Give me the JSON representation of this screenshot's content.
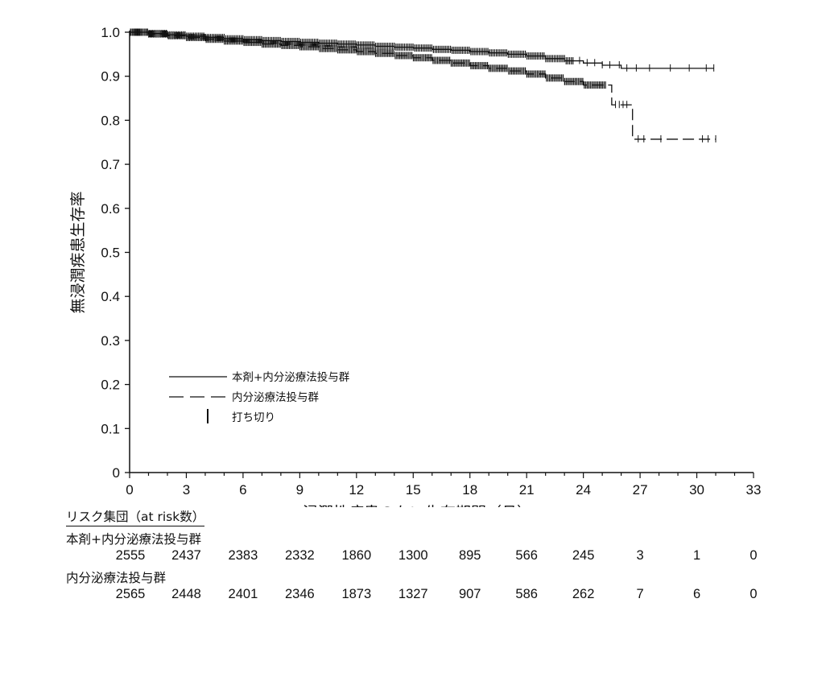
{
  "chart_data": {
    "type": "line",
    "subtype": "kaplan-meier",
    "title": "",
    "xlabel": "浸潤性疾患のない生存期間（月）",
    "ylabel": "無浸潤疾患生存率",
    "xlim": [
      0,
      33
    ],
    "ylim": [
      0,
      1.0
    ],
    "x_ticks": [
      "0",
      "3",
      "6",
      "9",
      "12",
      "15",
      "18",
      "21",
      "24",
      "27",
      "30",
      "33"
    ],
    "y_ticks": [
      "0",
      "0.1",
      "0.2",
      "0.3",
      "0.4",
      "0.5",
      "0.6",
      "0.7",
      "0.8",
      "0.9",
      "1.0"
    ],
    "grid": false,
    "legend_position": "bottom-left (inside plot)",
    "legend": {
      "censor_label": "打ち切り"
    },
    "series": [
      {
        "name": "本剤+内分泌療法投与群",
        "line_style": "solid",
        "points": [
          [
            0,
            1.0
          ],
          [
            1,
            0.997
          ],
          [
            2,
            0.994
          ],
          [
            3,
            0.991
          ],
          [
            4,
            0.988
          ],
          [
            5,
            0.985
          ],
          [
            6,
            0.983
          ],
          [
            7,
            0.981
          ],
          [
            8,
            0.979
          ],
          [
            9,
            0.977
          ],
          [
            10,
            0.975
          ],
          [
            11,
            0.973
          ],
          [
            12,
            0.971
          ],
          [
            13,
            0.968
          ],
          [
            14,
            0.966
          ],
          [
            15,
            0.964
          ],
          [
            16,
            0.961
          ],
          [
            17,
            0.959
          ],
          [
            18,
            0.956
          ],
          [
            19,
            0.953
          ],
          [
            20,
            0.95
          ],
          [
            21,
            0.946
          ],
          [
            22,
            0.94
          ],
          [
            23,
            0.935
          ],
          [
            24,
            0.93
          ],
          [
            25,
            0.925
          ],
          [
            26,
            0.918
          ],
          [
            27,
            0.918
          ],
          [
            28,
            0.918
          ],
          [
            29,
            0.918
          ],
          [
            30,
            0.918
          ],
          [
            30.9,
            0.918
          ]
        ]
      },
      {
        "name": "内分泌療法投与群",
        "line_style": "dashed",
        "points": [
          [
            0,
            1.0
          ],
          [
            1,
            0.996
          ],
          [
            2,
            0.992
          ],
          [
            3,
            0.988
          ],
          [
            4,
            0.984
          ],
          [
            5,
            0.98
          ],
          [
            6,
            0.977
          ],
          [
            7,
            0.973
          ],
          [
            8,
            0.97
          ],
          [
            9,
            0.967
          ],
          [
            10,
            0.963
          ],
          [
            11,
            0.96
          ],
          [
            12,
            0.956
          ],
          [
            13,
            0.952
          ],
          [
            14,
            0.947
          ],
          [
            15,
            0.942
          ],
          [
            16,
            0.936
          ],
          [
            17,
            0.93
          ],
          [
            18,
            0.924
          ],
          [
            19,
            0.918
          ],
          [
            20,
            0.912
          ],
          [
            21,
            0.905
          ],
          [
            22,
            0.896
          ],
          [
            23,
            0.888
          ],
          [
            24,
            0.88
          ],
          [
            25.5,
            0.88
          ],
          [
            25.5,
            0.835
          ],
          [
            26.6,
            0.835
          ],
          [
            26.6,
            0.757
          ],
          [
            28,
            0.757
          ],
          [
            29,
            0.757
          ],
          [
            30,
            0.757
          ],
          [
            31,
            0.757
          ]
        ]
      }
    ]
  },
  "risk_table": {
    "header": "リスク集団（at risk数）",
    "groups": [
      {
        "label": "本剤+内分泌療法投与群",
        "counts": [
          "2555",
          "2437",
          "2383",
          "2332",
          "1860",
          "1300",
          "895",
          "566",
          "245",
          "3",
          "1",
          "0"
        ]
      },
      {
        "label": "内分泌療法投与群",
        "counts": [
          "2565",
          "2448",
          "2401",
          "2346",
          "1873",
          "1327",
          "907",
          "586",
          "262",
          "7",
          "6",
          "0"
        ]
      }
    ]
  }
}
